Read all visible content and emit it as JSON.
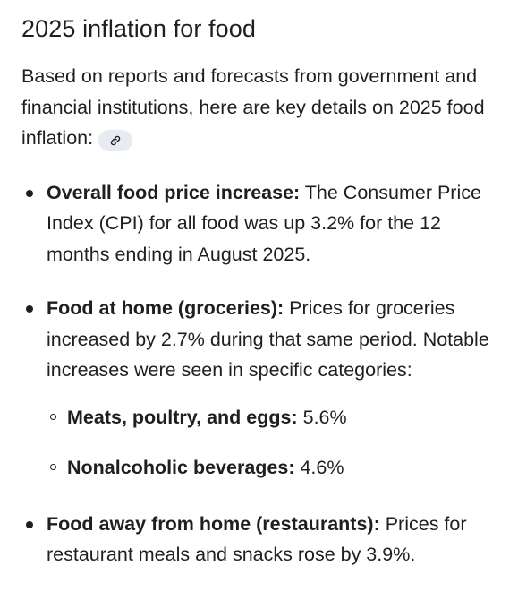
{
  "title": "2025 inflation for food",
  "intro": "Based on reports and forecasts from government and financial institutions, here are key details on 2025 food inflation:",
  "citation_icon": "link-icon",
  "bullets": [
    {
      "label": "Overall food price increase:",
      "text": " The Consumer Price Index (CPI) for all food was up 3.2% for the 12 months ending in August 2025."
    },
    {
      "label": "Food at home (groceries):",
      "text": " Prices for groceries increased by 2.7% during that same period. Notable increases were seen in specific categories:",
      "sub": [
        {
          "label": "Meats, poultry, and eggs:",
          "text": " 5.6%"
        },
        {
          "label": "Nonalcoholic beverages:",
          "text": " 4.6%"
        }
      ]
    },
    {
      "label": "Food away from home (restaurants):",
      "text": " Prices for restaurant meals and snacks rose by 3.9%."
    }
  ]
}
